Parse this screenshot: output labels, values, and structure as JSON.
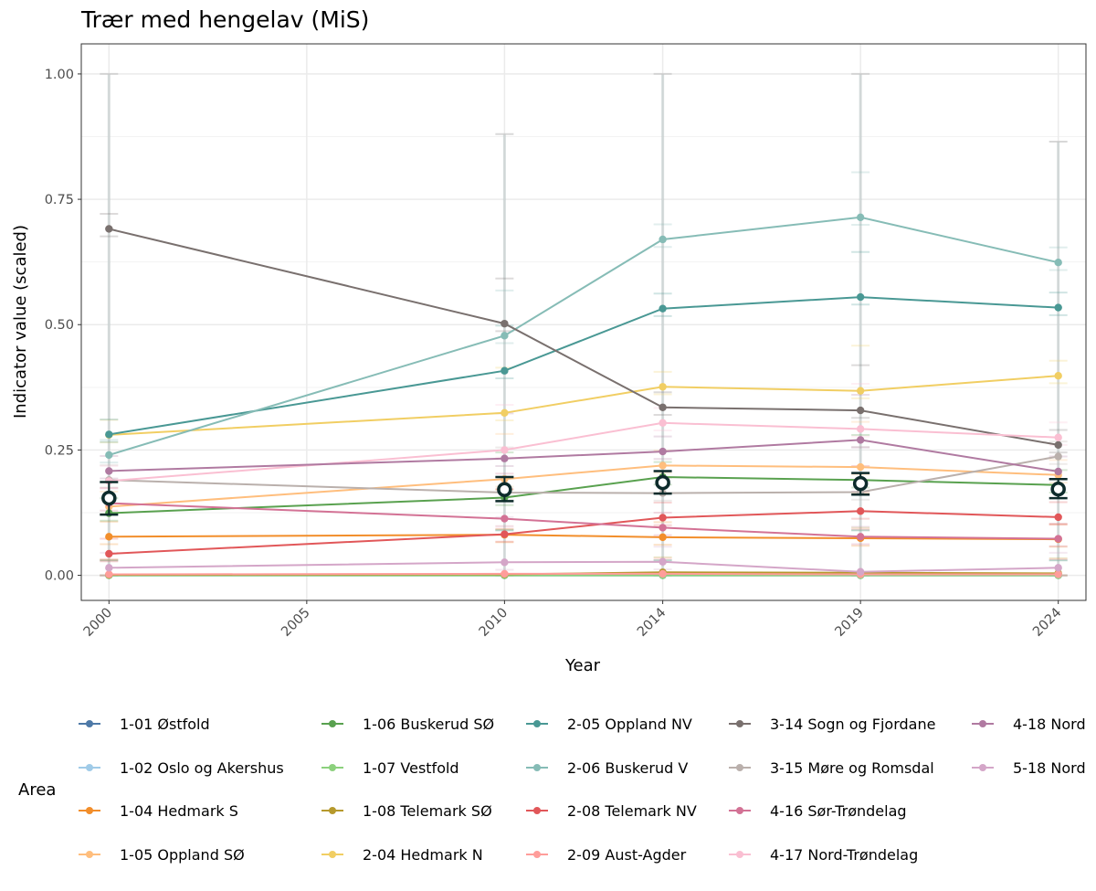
{
  "chart_data": {
    "type": "line",
    "title": "Trær med hengelav (MiS)",
    "xlabel": "Year",
    "ylabel": "Indicator value (scaled)",
    "xlim": [
      1999.3,
      2024.7
    ],
    "ylim": [
      -0.05,
      1.06
    ],
    "grid": true,
    "x_ticks": [
      2000,
      2005,
      2010,
      2014,
      2019,
      2024
    ],
    "y_ticks": [
      0.0,
      0.25,
      0.5,
      0.75,
      1.0
    ],
    "y_tick_labels": [
      "0.00",
      "0.25",
      "0.50",
      "0.75",
      "1.00"
    ],
    "x": [
      2000,
      2010,
      2014,
      2019,
      2024
    ],
    "legend": {
      "title": "Area",
      "placement": "bottom"
    },
    "series": [
      {
        "name": "1-01 Østfold",
        "color": "#4e79a7",
        "values": [
          0.0,
          0.0,
          0.0,
          0.0,
          0.0
        ]
      },
      {
        "name": "1-02 Oslo og Akershus",
        "color": "#a0cbe8",
        "values": [
          0.0,
          0.0,
          0.0,
          0.0,
          0.0
        ]
      },
      {
        "name": "1-04 Hedmark S",
        "color": "#f28e2b",
        "values": [
          0.077,
          0.081,
          0.076,
          0.074,
          0.072
        ]
      },
      {
        "name": "1-05 Oppland SØ",
        "color": "#ffbe7d",
        "values": [
          0.137,
          0.192,
          0.219,
          0.216,
          0.2
        ]
      },
      {
        "name": "1-06 Buskerud SØ",
        "color": "#59a14f",
        "values": [
          0.124,
          0.155,
          0.196,
          0.19,
          0.18
        ]
      },
      {
        "name": "1-07 Vestfold",
        "color": "#8cd17d",
        "values": [
          0.0,
          0.0,
          0.0,
          0.0,
          0.0
        ]
      },
      {
        "name": "1-08 Telemark SØ",
        "color": "#b6992d",
        "values": [
          0.001,
          0.002,
          0.006,
          0.005,
          0.004
        ]
      },
      {
        "name": "2-04 Hedmark N",
        "color": "#f1ce63",
        "values": [
          0.28,
          0.324,
          0.376,
          0.368,
          0.398
        ]
      },
      {
        "name": "2-05 Oppland NV",
        "color": "#499894",
        "values": [
          0.281,
          0.408,
          0.532,
          0.555,
          0.534
        ]
      },
      {
        "name": "2-06 Buskerud V",
        "color": "#86bcb6",
        "values": [
          0.24,
          0.478,
          0.67,
          0.714,
          0.624
        ]
      },
      {
        "name": "2-08 Telemark NV",
        "color": "#e15759",
        "values": [
          0.043,
          0.082,
          0.115,
          0.128,
          0.116
        ]
      },
      {
        "name": "2-09 Aust-Agder",
        "color": "#ff9d9a",
        "values": [
          0.002,
          0.003,
          0.003,
          0.002,
          0.002
        ]
      },
      {
        "name": "3-14 Sogn og Fjordane",
        "color": "#79706e",
        "values": [
          0.691,
          0.502,
          0.335,
          0.329,
          0.26
        ]
      },
      {
        "name": "3-15 Møre og Romsdal",
        "color": "#bab0ac",
        "values": [
          0.19,
          0.165,
          0.164,
          0.166,
          0.237
        ]
      },
      {
        "name": "4-16 Sør-Trøndelag",
        "color": "#d37295",
        "values": [
          0.144,
          0.113,
          0.095,
          0.077,
          0.073
        ]
      },
      {
        "name": "4-17 Nord-Trøndelag",
        "color": "#fabfd2",
        "values": [
          0.188,
          0.25,
          0.304,
          0.292,
          0.275
        ]
      },
      {
        "name": "4-18 Nord",
        "color": "#b07aa1",
        "values": [
          0.208,
          0.233,
          0.247,
          0.27,
          0.207
        ]
      },
      {
        "name": "5-18 Nord",
        "color": "#d4a6c8",
        "values": [
          0.015,
          0.026,
          0.027,
          0.007,
          0.015
        ]
      }
    ],
    "mean": {
      "name": "mean",
      "color": "#0d2b2b",
      "values": [
        0.154,
        0.171,
        0.185,
        0.183,
        0.172
      ],
      "lower": [
        0.121,
        0.148,
        0.163,
        0.161,
        0.154
      ],
      "upper": [
        0.186,
        0.196,
        0.208,
        0.204,
        0.192
      ]
    },
    "uncertainty_upper_max": [
      1.0,
      0.88,
      1.0,
      1.0,
      0.865
    ]
  }
}
